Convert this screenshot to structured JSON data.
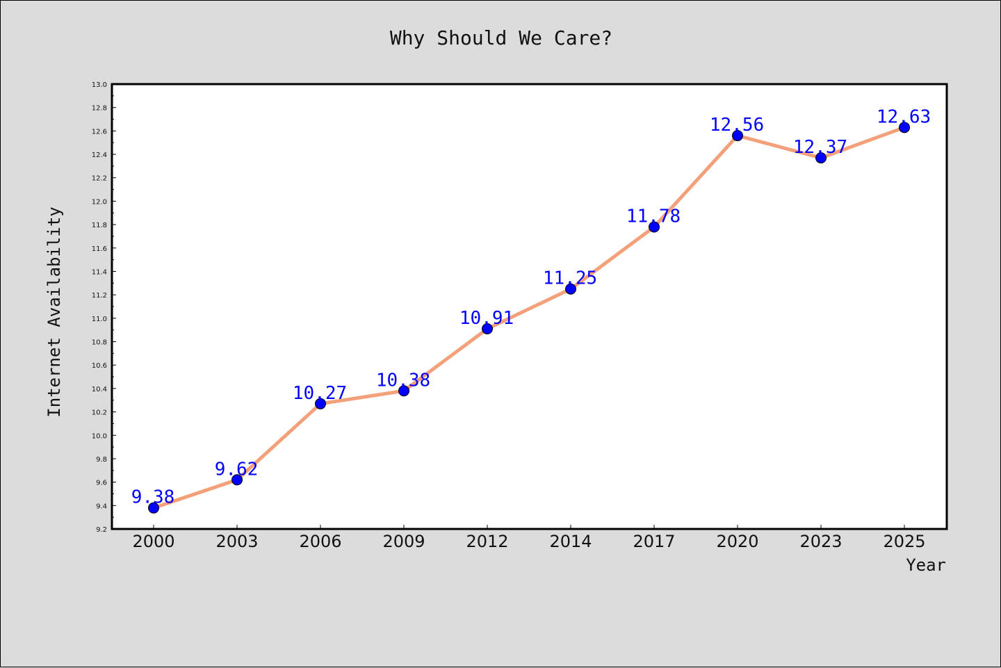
{
  "chart_data": {
    "type": "line",
    "title": "Why Should We Care?",
    "xlabel": "Year",
    "ylabel": "Internet Availability",
    "categories": [
      "2000",
      "2003",
      "2006",
      "2009",
      "2012",
      "2014",
      "2017",
      "2020",
      "2023",
      "2025"
    ],
    "series": [
      {
        "values": [
          9.38,
          9.62,
          10.27,
          10.38,
          10.91,
          11.25,
          11.78,
          12.56,
          12.37,
          12.63
        ],
        "labels": [
          "9.38",
          "9.62",
          "10.27",
          "10.38",
          "10.91",
          "11.25",
          "11.78",
          "12.56",
          "12.37",
          "12.63"
        ],
        "line_color": "#f4a07a",
        "marker_color": "#0000ff",
        "label_color": "#0000ff"
      }
    ],
    "ylim": [
      9.2,
      13.0
    ],
    "yticks": [
      "9.2",
      "9.4",
      "9.6",
      "9.8",
      "10.0",
      "10.2",
      "10.4",
      "10.6",
      "10.8",
      "11.0",
      "11.2",
      "11.4",
      "11.6",
      "11.8",
      "12.0",
      "12.2",
      "12.4",
      "12.6",
      "12.8",
      "13.0"
    ],
    "grid": false,
    "legend": "none",
    "background_color": "#dcdcdc",
    "plot_background_color": "#ffffff"
  }
}
